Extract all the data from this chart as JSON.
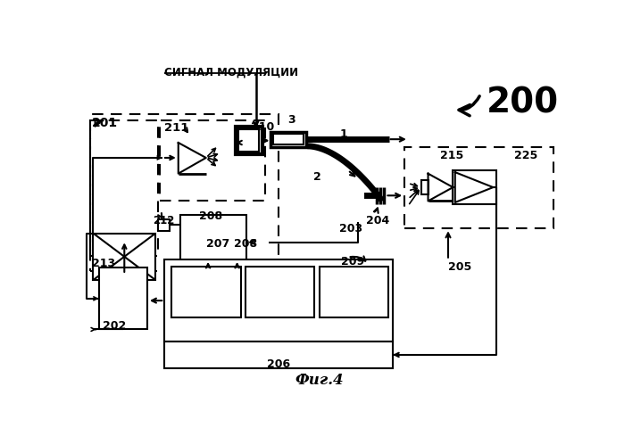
{
  "bg_color": "#ffffff",
  "signal_label": "СИГНАЛ МОДУЛЯЦИИ",
  "fig_label": "Фиг.4",
  "lbl_200": "200",
  "lbl_201": "201",
  "lbl_202": "202",
  "lbl_203": "203",
  "lbl_204": "204",
  "lbl_205": "205",
  "lbl_206": "206",
  "lbl_207": "207",
  "lbl_208": "208",
  "lbl_209": "209",
  "lbl_210": "210",
  "lbl_211": "211",
  "lbl_212": "212",
  "lbl_213": "213",
  "lbl_215": "215",
  "lbl_225": "225",
  "lbl_1": "1",
  "lbl_2": "2",
  "lbl_3": "3"
}
